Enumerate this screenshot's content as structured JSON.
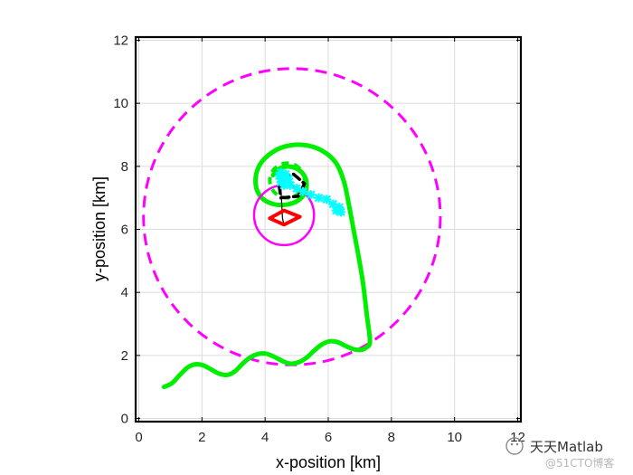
{
  "chart_data": {
    "type": "line",
    "title": "",
    "xlabel": "x-position [km]",
    "ylabel": "y-position [km]",
    "xlim": [
      -0.1,
      12.1
    ],
    "ylim": [
      -0.1,
      12.1
    ],
    "xticks": [
      0,
      2,
      4,
      6,
      8,
      10,
      12
    ],
    "yticks": [
      0,
      2,
      4,
      6,
      8,
      10,
      12
    ],
    "grid": true,
    "colors": {
      "green": "#00ee00",
      "magenta": "#ff00ff",
      "red": "#ff0000",
      "black": "#000000",
      "cyan": "#00ffff",
      "grid": "#dcdcdc"
    },
    "series": [
      {
        "name": "green-trajectory",
        "style": "solid",
        "color": "#00ee00",
        "points": [
          [
            0.8,
            1.0
          ],
          [
            1.05,
            1.12
          ],
          [
            1.3,
            1.38
          ],
          [
            1.55,
            1.62
          ],
          [
            1.8,
            1.72
          ],
          [
            2.05,
            1.68
          ],
          [
            2.3,
            1.55
          ],
          [
            2.55,
            1.42
          ],
          [
            2.8,
            1.38
          ],
          [
            3.05,
            1.5
          ],
          [
            3.3,
            1.75
          ],
          [
            3.55,
            1.95
          ],
          [
            3.8,
            2.05
          ],
          [
            4.05,
            2.05
          ],
          [
            4.3,
            1.95
          ],
          [
            4.55,
            1.82
          ],
          [
            4.8,
            1.74
          ],
          [
            5.05,
            1.78
          ],
          [
            5.3,
            1.92
          ],
          [
            5.55,
            2.15
          ],
          [
            5.8,
            2.35
          ],
          [
            6.05,
            2.45
          ],
          [
            6.3,
            2.42
          ],
          [
            6.55,
            2.3
          ],
          [
            6.8,
            2.2
          ],
          [
            7.05,
            2.18
          ],
          [
            7.2,
            2.25
          ],
          [
            7.32,
            2.45
          ],
          [
            7.22,
            3.3
          ],
          [
            7.1,
            4.3
          ],
          [
            6.95,
            5.2
          ],
          [
            6.8,
            6.0
          ],
          [
            6.65,
            6.8
          ],
          [
            6.5,
            7.5
          ],
          [
            6.25,
            8.1
          ],
          [
            5.8,
            8.5
          ],
          [
            5.2,
            8.68
          ],
          [
            4.6,
            8.62
          ],
          [
            4.1,
            8.35
          ],
          [
            3.78,
            7.95
          ],
          [
            3.7,
            7.45
          ],
          [
            3.85,
            7.05
          ],
          [
            4.2,
            6.82
          ],
          [
            4.65,
            6.78
          ],
          [
            5.05,
            6.92
          ],
          [
            5.28,
            7.2
          ],
          [
            5.3,
            7.55
          ],
          [
            5.15,
            7.82
          ],
          [
            4.85,
            7.98
          ],
          [
            4.5,
            7.95
          ],
          [
            4.25,
            7.72
          ]
        ]
      },
      {
        "name": "magenta-dashed-range",
        "style": "dashed-circle",
        "color": "#ff00ff",
        "center": [
          4.85,
          6.4
        ],
        "radius": 4.7
      },
      {
        "name": "magenta-inner-circle",
        "style": "solid-circle",
        "color": "#ff00ff",
        "center": [
          4.6,
          6.45
        ],
        "radius": 0.95
      },
      {
        "name": "green-dashed-circle",
        "style": "dashed-circle",
        "color": "#00ee00",
        "center": [
          4.7,
          7.55
        ],
        "radius": 0.55
      },
      {
        "name": "black-dashed-polygon",
        "style": "dashed",
        "color": "#000000",
        "points": [
          [
            4.5,
            7.7
          ],
          [
            4.9,
            7.75
          ],
          [
            5.25,
            7.45
          ],
          [
            5.05,
            7.05
          ],
          [
            4.5,
            7.0
          ],
          [
            4.45,
            7.35
          ],
          [
            4.5,
            7.7
          ]
        ]
      },
      {
        "name": "red-polygon",
        "style": "solid",
        "color": "#ff0000",
        "points": [
          [
            4.15,
            6.35
          ],
          [
            4.6,
            6.6
          ],
          [
            5.1,
            6.4
          ],
          [
            4.6,
            6.15
          ],
          [
            4.15,
            6.35
          ]
        ]
      },
      {
        "name": "black-link",
        "style": "thin",
        "color": "#000000",
        "points": [
          [
            4.5,
            7.35
          ],
          [
            4.55,
            6.35
          ],
          [
            4.6,
            6.15
          ]
        ]
      },
      {
        "name": "cyan-track",
        "style": "marker",
        "color": "#00ffff",
        "points": [
          [
            4.45,
            7.7
          ],
          [
            4.5,
            7.8
          ],
          [
            4.65,
            7.75
          ],
          [
            4.75,
            7.6
          ],
          [
            4.6,
            7.4
          ],
          [
            4.5,
            7.5
          ],
          [
            4.65,
            7.55
          ],
          [
            4.8,
            7.4
          ],
          [
            5.0,
            7.3
          ],
          [
            5.2,
            7.2
          ],
          [
            5.45,
            7.1
          ],
          [
            5.7,
            7.0
          ],
          [
            5.95,
            6.95
          ],
          [
            6.15,
            6.8
          ],
          [
            6.3,
            6.65
          ],
          [
            6.4,
            6.55
          ],
          [
            6.35,
            6.7
          ],
          [
            6.25,
            6.6
          ]
        ]
      }
    ]
  },
  "watermark": {
    "brand": "天天Matlab",
    "sub": "@51CTO博客"
  }
}
